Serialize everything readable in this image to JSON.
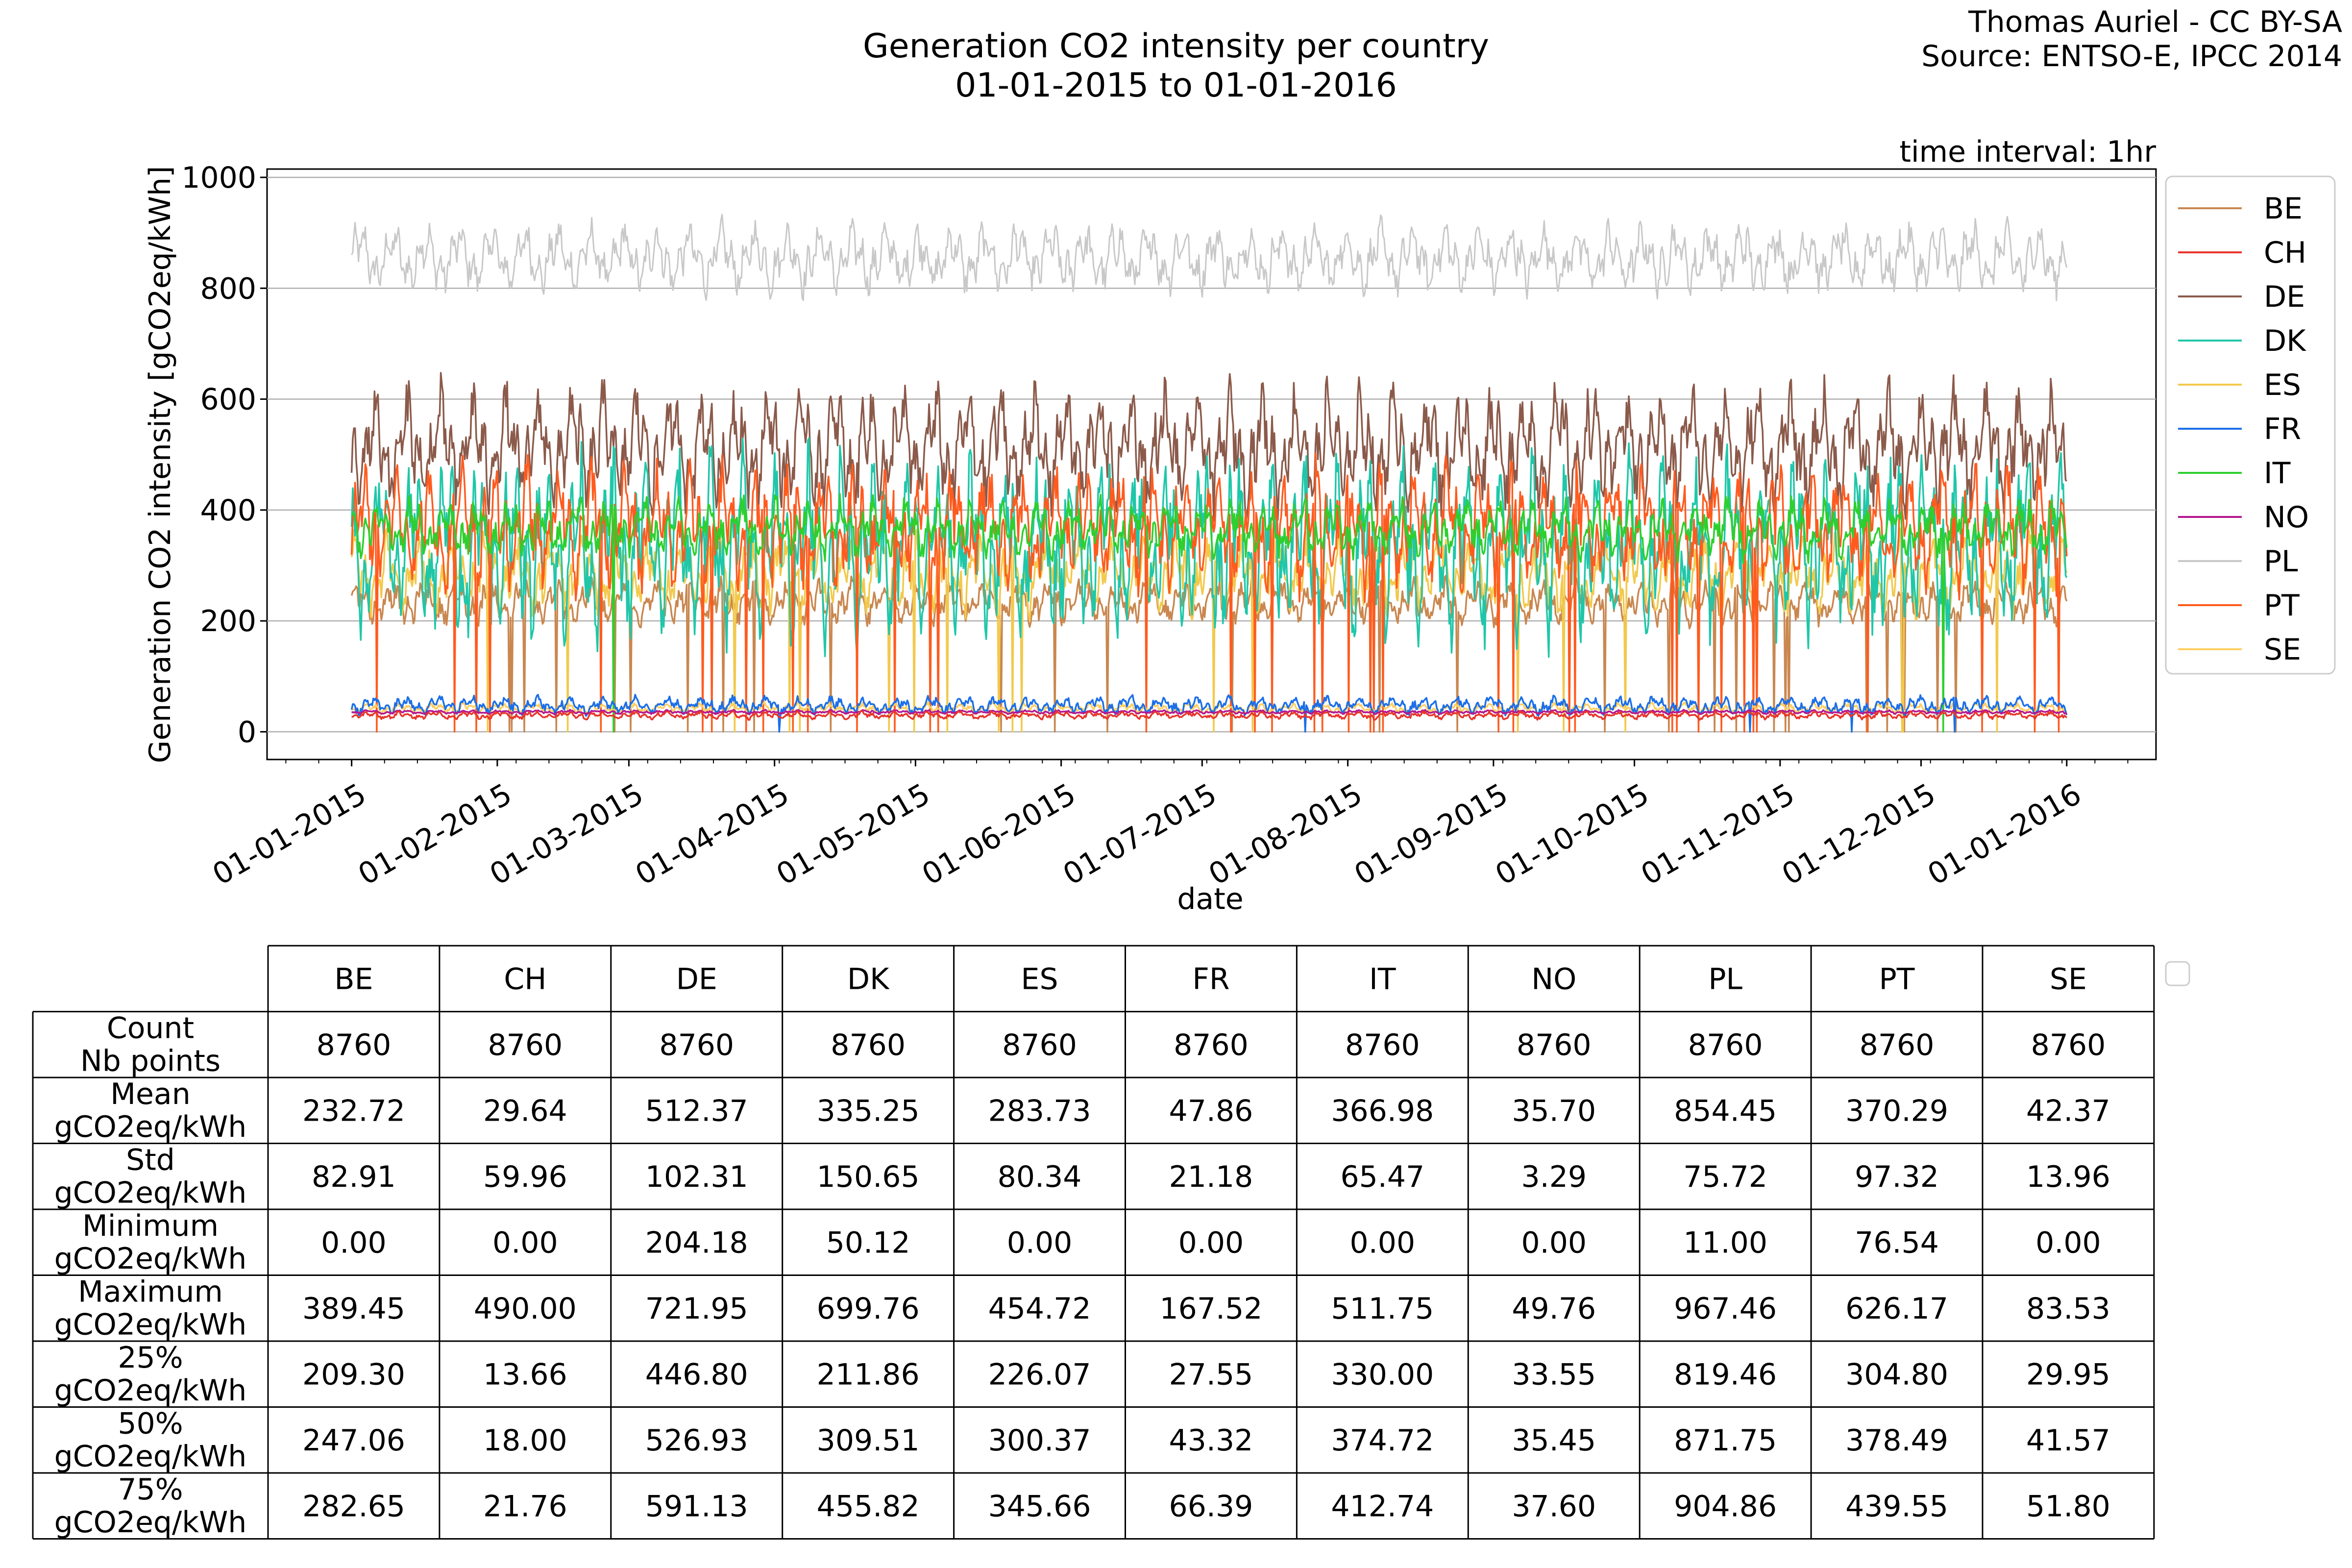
{
  "chart_data": {
    "type": "line",
    "title": "Generation CO2 intensity per country",
    "subtitle": "01-01-2015 to 01-01-2016",
    "credit_author": "Thomas Auriel - CC BY-SA",
    "credit_source": "Source: ENTSO-E, IPCC 2014",
    "annotation": "time interval: 1hr",
    "xlabel": "date",
    "ylabel": "Generation CO2 intensity [gCO2eq/kWh]",
    "ylim": [
      -50,
      1015
    ],
    "yticks": [
      0,
      200,
      400,
      600,
      800,
      1000
    ],
    "grid": true,
    "legend_position": "right",
    "x_day_range": [
      -18,
      384
    ],
    "xticks": [
      {
        "day": 0,
        "label": "01-01-2015"
      },
      {
        "day": 31,
        "label": "01-02-2015"
      },
      {
        "day": 59,
        "label": "01-03-2015"
      },
      {
        "day": 90,
        "label": "01-04-2015"
      },
      {
        "day": 120,
        "label": "01-05-2015"
      },
      {
        "day": 151,
        "label": "01-06-2015"
      },
      {
        "day": 181,
        "label": "01-07-2015"
      },
      {
        "day": 212,
        "label": "01-08-2015"
      },
      {
        "day": 243,
        "label": "01-09-2015"
      },
      {
        "day": 273,
        "label": "01-10-2015"
      },
      {
        "day": 304,
        "label": "01-11-2015"
      },
      {
        "day": 334,
        "label": "01-12-2015"
      },
      {
        "day": 365,
        "label": "01-01-2016"
      }
    ],
    "series": [
      {
        "name": "BE",
        "color": "#c9874f",
        "mean": 232.72,
        "amp": 35,
        "dip": 0.02
      },
      {
        "name": "CH",
        "color": "#e8352b",
        "mean": 29.64,
        "amp": 6,
        "dip": 0
      },
      {
        "name": "DE",
        "color": "#8b5a4a",
        "mean": 512.37,
        "amp": 95,
        "dip": 0
      },
      {
        "name": "DK",
        "color": "#1fc7a9",
        "mean": 335.25,
        "amp": 140,
        "dip": 0
      },
      {
        "name": "ES",
        "color": "#f2c94c",
        "mean": 283.73,
        "amp": 60,
        "dip": 0.01
      },
      {
        "name": "FR",
        "color": "#1c6fe8",
        "mean": 47.86,
        "amp": 14,
        "dip": 0.002
      },
      {
        "name": "IT",
        "color": "#2ecf2e",
        "mean": 366.98,
        "amp": 45,
        "dip": 0.003
      },
      {
        "name": "NO",
        "color": "#b5178f",
        "mean": 35.7,
        "amp": 3,
        "dip": 0
      },
      {
        "name": "PL",
        "color": "#c8c8c8",
        "mean": 854.45,
        "amp": 55,
        "dip": 0
      },
      {
        "name": "PT",
        "color": "#ff5b1f",
        "mean": 370.29,
        "amp": 95,
        "dip": 0.02
      },
      {
        "name": "SE",
        "color": "#ffce62",
        "mean": 42.37,
        "amp": 8,
        "dip": 0
      }
    ]
  },
  "table": {
    "columns": [
      "BE",
      "CH",
      "DE",
      "DK",
      "ES",
      "FR",
      "IT",
      "NO",
      "PL",
      "PT",
      "SE"
    ],
    "rows": [
      {
        "label1": "Count",
        "label2": "Nb points",
        "values": [
          "8760",
          "8760",
          "8760",
          "8760",
          "8760",
          "8760",
          "8760",
          "8760",
          "8760",
          "8760",
          "8760"
        ]
      },
      {
        "label1": "Mean",
        "label2": "gCO2eq/kWh",
        "values": [
          "232.72",
          "29.64",
          "512.37",
          "335.25",
          "283.73",
          "47.86",
          "366.98",
          "35.70",
          "854.45",
          "370.29",
          "42.37"
        ]
      },
      {
        "label1": "Std",
        "label2": "gCO2eq/kWh",
        "values": [
          "82.91",
          "59.96",
          "102.31",
          "150.65",
          "80.34",
          "21.18",
          "65.47",
          "3.29",
          "75.72",
          "97.32",
          "13.96"
        ]
      },
      {
        "label1": "Minimum",
        "label2": "gCO2eq/kWh",
        "values": [
          "0.00",
          "0.00",
          "204.18",
          "50.12",
          "0.00",
          "0.00",
          "0.00",
          "0.00",
          "11.00",
          "76.54",
          "0.00"
        ]
      },
      {
        "label1": "Maximum",
        "label2": "gCO2eq/kWh",
        "values": [
          "389.45",
          "490.00",
          "721.95",
          "699.76",
          "454.72",
          "167.52",
          "511.75",
          "49.76",
          "967.46",
          "626.17",
          "83.53"
        ]
      },
      {
        "label1": "25%",
        "label2": "gCO2eq/kWh",
        "values": [
          "209.30",
          "13.66",
          "446.80",
          "211.86",
          "226.07",
          "27.55",
          "330.00",
          "33.55",
          "819.46",
          "304.80",
          "29.95"
        ]
      },
      {
        "label1": "50%",
        "label2": "gCO2eq/kWh",
        "values": [
          "247.06",
          "18.00",
          "526.93",
          "309.51",
          "300.37",
          "43.32",
          "374.72",
          "35.45",
          "871.75",
          "378.49",
          "41.57"
        ]
      },
      {
        "label1": "75%",
        "label2": "gCO2eq/kWh",
        "values": [
          "282.65",
          "21.76",
          "591.13",
          "455.82",
          "345.66",
          "66.39",
          "412.74",
          "37.60",
          "904.86",
          "439.55",
          "51.80"
        ]
      }
    ]
  }
}
